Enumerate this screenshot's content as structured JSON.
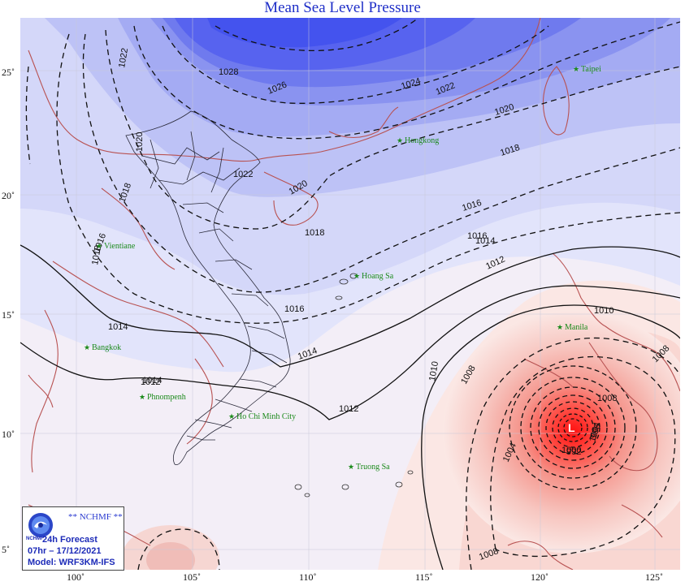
{
  "title": "Mean Sea Level Pressure",
  "axes": {
    "lat_labels": [
      "25˚",
      "20˚",
      "15˚",
      "10˚",
      "5˚"
    ],
    "lon_labels": [
      "100˚",
      "105˚",
      "110˚",
      "115˚",
      "120˚",
      "125˚"
    ]
  },
  "infobox": {
    "agency": "** NCHMF **",
    "logo_text": "NCHMF",
    "forecast": "24h Forecast",
    "valid_time": "07hr – 17/12/2021",
    "model": "Model: WRF3KM-IFS"
  },
  "isobars": {
    "labels": [
      "1028",
      "1026",
      "1024",
      "1022",
      "1022",
      "1022",
      "1020",
      "1020",
      "1020",
      "1018",
      "1018",
      "1018",
      "1018",
      "1016",
      "1016",
      "1016",
      "1016",
      "1014",
      "1014",
      "1014",
      "1014",
      "1012",
      "1012",
      "1012",
      "1010",
      "1010",
      "1008",
      "1008",
      "1008",
      "1008",
      "1004",
      "1004",
      "1000",
      "996",
      "992"
    ],
    "low_center_symbol": "L"
  },
  "places": [
    "Taipei",
    "Hongkong",
    "Vientiane",
    "Hoang Sa",
    "Manila",
    "Bangkok",
    "Phnompenh",
    "Ho Chi Minh City",
    "Truong Sa"
  ],
  "colors": {
    "high_dark": "#3c4ff0",
    "high_light": "#e6e8fc",
    "low_dark": "#ff1a1a",
    "low_light": "#fbe7e4",
    "coast": "#b85252",
    "place_text": "#1b8a1b",
    "isobar": "#111111"
  }
}
